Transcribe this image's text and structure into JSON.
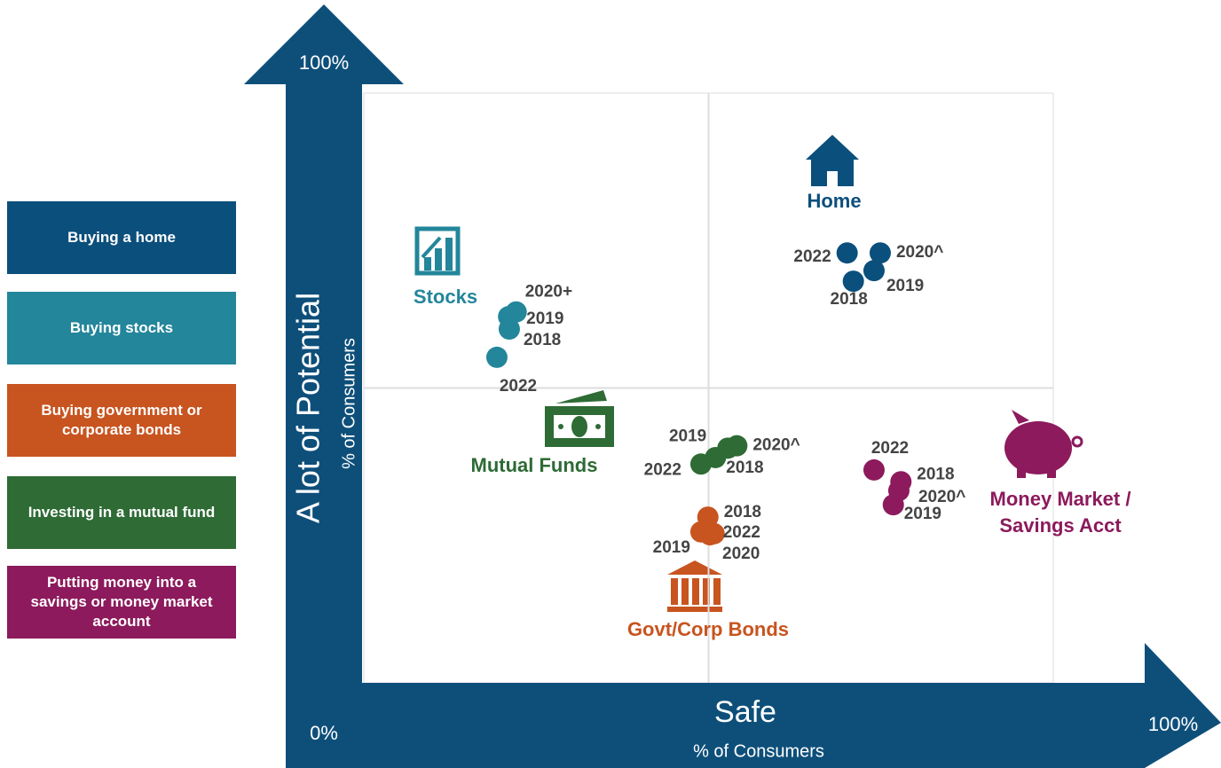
{
  "chart_data": {
    "type": "scatter",
    "x_label": "Safe",
    "x_sublabel": "% of Consumers",
    "y_label": "A lot of Potential",
    "y_sublabel": "% of Consumers",
    "xlim": [
      0,
      100
    ],
    "ylim": [
      0,
      100
    ],
    "xticks": [
      {
        "value": 0,
        "label": "0%"
      },
      {
        "value": 100,
        "label": "100%"
      }
    ],
    "yticks": [
      {
        "value": 100,
        "label": "100%"
      }
    ],
    "quadrant_lines": {
      "x": 50,
      "y": 50
    },
    "series": [
      {
        "name": "Buying a home",
        "label": "Home",
        "color": "#0b4f7c",
        "x": [
          70.1,
          74.9,
          74.0,
          71.0
        ],
        "values": [
          72.9,
          72.9,
          69.9,
          68.1
        ],
        "point_labels": [
          "2022",
          "2020^",
          "2019",
          "2018"
        ]
      },
      {
        "name": "Buying stocks",
        "label": "Stocks",
        "color": "#23869b",
        "x": [
          22.1,
          21.0,
          21.1,
          19.3
        ],
        "values": [
          62.9,
          62.1,
          60.0,
          55.2
        ],
        "point_labels": [
          "2020+",
          "2019",
          "2018",
          "2022"
        ]
      },
      {
        "name": "Buying government or corporate bonds",
        "label": "Govt/Corp Bonds",
        "color": "#c8541f",
        "x": [
          49.9,
          50.8,
          48.9,
          50.2
        ],
        "values": [
          28.1,
          25.3,
          25.6,
          25.1
        ],
        "point_labels": [
          "2018",
          "2022",
          "2019",
          "2020"
        ]
      },
      {
        "name": "Investing in a mutual fund",
        "label": "Mutual Funds",
        "color": "#2e6b35",
        "x": [
          48.9,
          51.0,
          52.8,
          54.1
        ],
        "values": [
          37.1,
          38.2,
          39.8,
          40.2
        ],
        "point_labels": [
          "2022",
          "2018",
          "2019",
          "2020^"
        ]
      },
      {
        "name": "Putting money into a savings or money market account",
        "label": "Money Market / Savings Acct",
        "color": "#8c1a5c",
        "x": [
          74.0,
          77.9,
          77.6,
          76.8
        ],
        "values": [
          36.1,
          34.1,
          32.6,
          30.2
        ],
        "point_labels": [
          "2022",
          "2018",
          "2020^",
          "2019"
        ]
      }
    ]
  }
}
